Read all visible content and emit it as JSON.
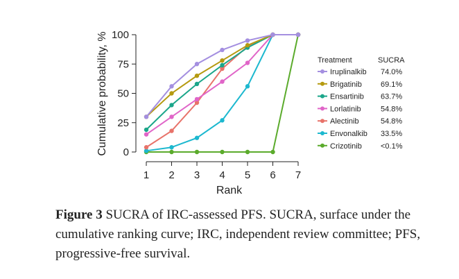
{
  "chart_data": {
    "type": "line",
    "title": "",
    "xlabel": "Rank",
    "ylabel": "Cumulative probability, %",
    "x": [
      1,
      2,
      3,
      4,
      5,
      6,
      7
    ],
    "xlim": [
      1,
      7
    ],
    "ylim": [
      0,
      100
    ],
    "yticks": [
      0,
      25,
      50,
      75,
      100
    ],
    "legend_title": "Treatment",
    "legend_value_header": "SUCRA",
    "legend_position": "right",
    "series": [
      {
        "name": "Iruplinalkib",
        "sucra": "74.0%",
        "color": "#a48fe0",
        "values": [
          30,
          56,
          75,
          87,
          95,
          100,
          100
        ]
      },
      {
        "name": "Brigatinib",
        "sucra": "69.1%",
        "color": "#b59a10",
        "values": [
          30,
          50,
          65,
          78,
          91,
          100,
          100
        ]
      },
      {
        "name": "Ensartinib",
        "sucra": "63.7%",
        "color": "#1ba68a",
        "values": [
          19,
          40,
          58,
          74,
          89,
          100,
          100
        ]
      },
      {
        "name": "Lorlatinib",
        "sucra": "54.8%",
        "color": "#e065c8",
        "values": [
          15,
          30,
          45,
          60,
          76,
          100,
          100
        ]
      },
      {
        "name": "Alectinib",
        "sucra": "54.8%",
        "color": "#e8736a",
        "values": [
          4,
          18,
          42,
          71,
          90,
          100,
          100
        ]
      },
      {
        "name": "Envonalkib",
        "sucra": "33.5%",
        "color": "#1cb8cf",
        "values": [
          1,
          4,
          12,
          27,
          56,
          100,
          100
        ]
      },
      {
        "name": "Crizotinib",
        "sucra": "<0.1%",
        "color": "#5bab2c",
        "values": [
          0,
          0,
          0,
          0,
          0,
          0,
          100
        ]
      }
    ]
  },
  "caption": {
    "label": "Figure 3",
    "text": " SUCRA of IRC-assessed PFS. SUCRA, surface under the cumulative ranking curve; IRC, independent review committee; PFS, progressive-free survival."
  }
}
